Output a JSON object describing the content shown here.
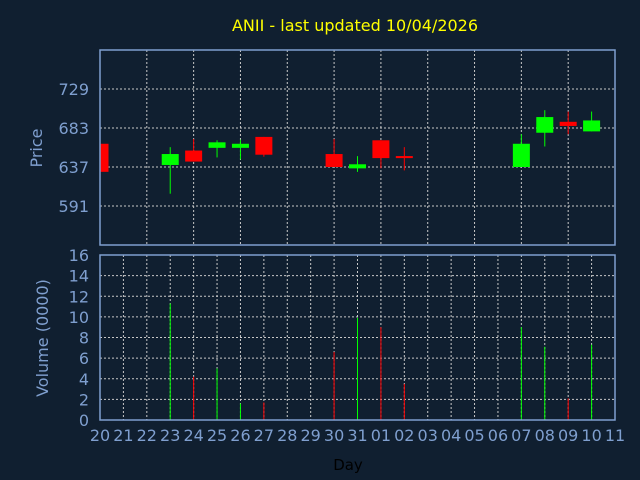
{
  "chart_data": {
    "type": "candlestick",
    "title": "ANII - last updated 10/04/2026",
    "xlabel": "Day",
    "ylabel": "Price",
    "volume_ylabel": "Volume (0000)",
    "x_tick_labels": [
      "20",
      "21",
      "22",
      "23",
      "24",
      "25",
      "26",
      "27",
      "28",
      "29",
      "30",
      "31",
      "01",
      "02",
      "03",
      "04",
      "05",
      "06",
      "07",
      "08",
      "09",
      "10",
      "11"
    ],
    "y_ticks": [
      591,
      637,
      683,
      729
    ],
    "ylim": [
      545,
      775
    ],
    "volume_ticks": [
      0,
      2,
      4,
      6,
      8,
      10,
      12,
      14,
      16
    ],
    "volume_ylim": [
      0,
      16
    ],
    "grid": true,
    "colors": {
      "up": "#00ff00",
      "down": "#ff0000",
      "title": "#ffff00",
      "axis": "#7f9fcf",
      "background": "#101f30"
    },
    "candles": [
      {
        "day": "20",
        "open": 664.4,
        "high": 664.4,
        "low": 631.3,
        "close": 631.3,
        "volume": 0
      },
      {
        "day": "23",
        "open": 639.4,
        "high": 660.4,
        "low": 605.5,
        "close": 652.3,
        "volume": 11.3
      },
      {
        "day": "24",
        "open": 656.4,
        "high": 670.1,
        "low": 643.4,
        "close": 643.4,
        "volume": 4.2
      },
      {
        "day": "25",
        "open": 659.6,
        "high": 668.5,
        "low": 648.3,
        "close": 666.1,
        "volume": 5.0
      },
      {
        "day": "26",
        "open": 659.6,
        "high": 669.3,
        "low": 645.9,
        "close": 664.4,
        "volume": 1.6
      },
      {
        "day": "27",
        "open": 672.5,
        "high": 672.5,
        "low": 649.1,
        "close": 651.5,
        "volume": 1.7
      },
      {
        "day": "30",
        "open": 652.3,
        "high": 670.1,
        "low": 637.0,
        "close": 637.0,
        "volume": 6.6
      },
      {
        "day": "31",
        "open": 635.4,
        "high": 649.9,
        "low": 631.3,
        "close": 640.2,
        "volume": 9.9
      },
      {
        "day": "01",
        "open": 668.5,
        "high": 668.5,
        "low": 635.4,
        "close": 647.5,
        "volume": 9.0
      },
      {
        "day": "02",
        "open": 649.9,
        "high": 660.4,
        "low": 633.0,
        "close": 647.5,
        "volume": 3.5
      },
      {
        "day": "07",
        "open": 637.0,
        "high": 675.7,
        "low": 637.0,
        "close": 664.4,
        "volume": 9.0
      },
      {
        "day": "08",
        "open": 677.4,
        "high": 704.0,
        "low": 661.2,
        "close": 695.9,
        "volume": 7.1
      },
      {
        "day": "09",
        "open": 690.3,
        "high": 702.4,
        "low": 675.7,
        "close": 685.4,
        "volume": 2.1
      },
      {
        "day": "10",
        "open": 679.0,
        "high": 702.4,
        "low": 679.0,
        "close": 691.9,
        "volume": 7.3
      }
    ]
  }
}
